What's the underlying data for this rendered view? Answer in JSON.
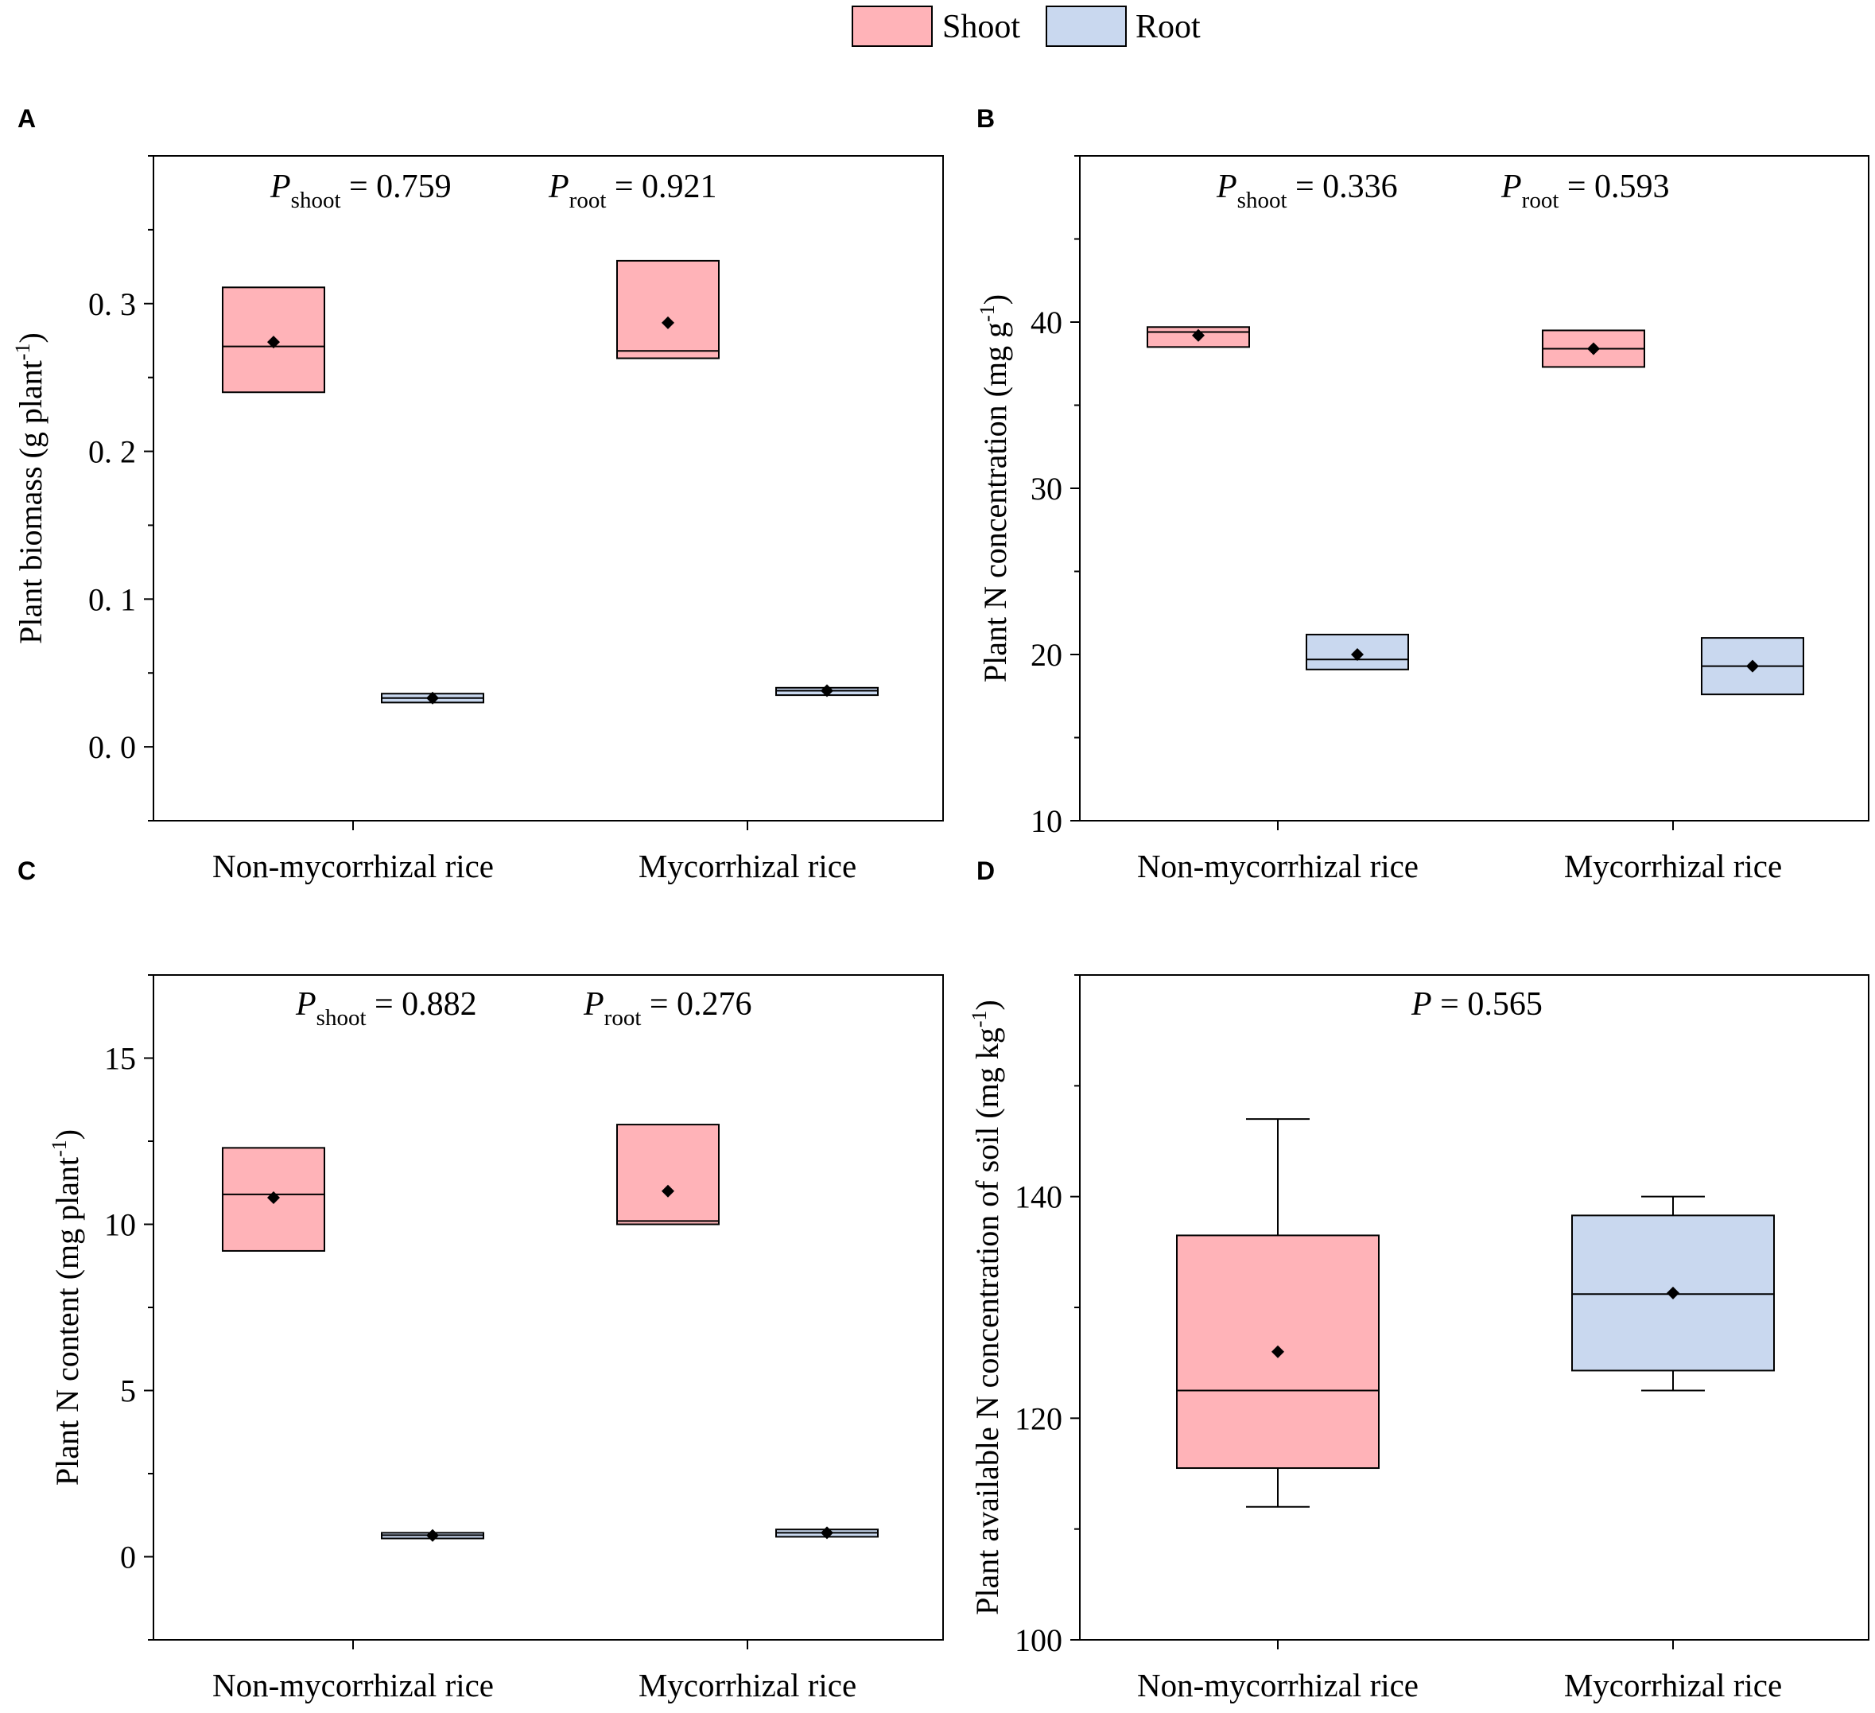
{
  "legend": {
    "items": [
      {
        "label": "Shoot",
        "color": "#ffb3b8"
      },
      {
        "label": "Root",
        "color": "#c9d8ef"
      }
    ],
    "placement": "top-center"
  },
  "colors": {
    "shoot": "#ffb3b8",
    "root": "#c9d8ef",
    "stroke": "#000000",
    "background": "#ffffff"
  },
  "chart_data": [
    {
      "panel": "A",
      "type": "box",
      "ylabel": "Plant biomass (g plant-1)",
      "ylabel_parts": {
        "main": "Plant biomass (g plant",
        "sup": "-1",
        "tail": ")"
      },
      "ylim": [
        -0.05,
        0.4
      ],
      "yticks": [
        0.0,
        0.1,
        0.2,
        0.3
      ],
      "ytick_labels": [
        "0. 0",
        "0. 1",
        "0. 2",
        "0. 3"
      ],
      "categories": [
        "Non-mycorrhizal rice",
        "Mycorrhizal rice"
      ],
      "annotations": [
        {
          "p": "P",
          "sub": "shoot",
          "rest": " = 0.759",
          "text": "Pshoot = 0.759"
        },
        {
          "p": "P",
          "sub": "root",
          "rest": " = 0.921",
          "text": "Proot = 0.921"
        }
      ],
      "boxes": [
        {
          "category": 0,
          "series": "shoot",
          "q1": 0.24,
          "median": 0.271,
          "q3": 0.311,
          "mean": 0.274
        },
        {
          "category": 0,
          "series": "root",
          "q1": 0.03,
          "median": 0.033,
          "q3": 0.036,
          "mean": 0.033
        },
        {
          "category": 1,
          "series": "shoot",
          "q1": 0.263,
          "median": 0.268,
          "q3": 0.329,
          "mean": 0.287
        },
        {
          "category": 1,
          "series": "root",
          "q1": 0.035,
          "median": 0.038,
          "q3": 0.04,
          "mean": 0.038
        }
      ]
    },
    {
      "panel": "B",
      "type": "box",
      "ylabel": "Plant N concentration (mg g-1)",
      "ylabel_parts": {
        "main": "Plant N concentration (mg g",
        "sup": "-1",
        "tail": ")"
      },
      "ylim": [
        10,
        50
      ],
      "yticks": [
        10,
        20,
        30,
        40
      ],
      "ytick_labels": [
        "10",
        "20",
        "30",
        "40"
      ],
      "categories": [
        "Non-mycorrhizal rice",
        "Mycorrhizal rice"
      ],
      "annotations": [
        {
          "p": "P",
          "sub": "shoot",
          "rest": " = 0.336",
          "text": "Pshoot = 0.336"
        },
        {
          "p": "P",
          "sub": "root",
          "rest": " = 0.593",
          "text": "Proot = 0.593"
        }
      ],
      "boxes": [
        {
          "category": 0,
          "series": "shoot",
          "q1": 38.5,
          "median": 39.4,
          "q3": 39.7,
          "mean": 39.2
        },
        {
          "category": 0,
          "series": "root",
          "q1": 19.1,
          "median": 19.7,
          "q3": 21.2,
          "mean": 20.0
        },
        {
          "category": 1,
          "series": "shoot",
          "q1": 37.3,
          "median": 38.4,
          "q3": 39.5,
          "mean": 38.4
        },
        {
          "category": 1,
          "series": "root",
          "q1": 17.6,
          "median": 19.3,
          "q3": 21.0,
          "mean": 19.3
        }
      ]
    },
    {
      "panel": "C",
      "type": "box",
      "ylabel": "Plant N content (mg plant-1)",
      "ylabel_parts": {
        "main": "Plant N content (mg plant",
        "sup": "-1",
        "tail": ")"
      },
      "ylim": [
        -2.5,
        17.5
      ],
      "yticks": [
        0,
        5,
        10,
        15
      ],
      "ytick_labels": [
        "0",
        "5",
        "10",
        "15"
      ],
      "categories": [
        "Non-mycorrhizal rice",
        "Mycorrhizal rice"
      ],
      "annotations": [
        {
          "p": "P",
          "sub": "shoot",
          "rest": " = 0.882",
          "text": "Pshoot = 0.882"
        },
        {
          "p": "P",
          "sub": "root",
          "rest": " = 0.276",
          "text": "Proot = 0.276"
        }
      ],
      "boxes": [
        {
          "category": 0,
          "series": "shoot",
          "q1": 9.2,
          "median": 10.9,
          "q3": 12.3,
          "mean": 10.8
        },
        {
          "category": 0,
          "series": "root",
          "q1": 0.55,
          "median": 0.65,
          "q3": 0.72,
          "mean": 0.64
        },
        {
          "category": 1,
          "series": "shoot",
          "q1": 10.0,
          "median": 10.1,
          "q3": 13.0,
          "mean": 11.0
        },
        {
          "category": 1,
          "series": "root",
          "q1": 0.6,
          "median": 0.72,
          "q3": 0.82,
          "mean": 0.72
        }
      ]
    },
    {
      "panel": "D",
      "type": "box",
      "ylabel": "Plant available N concentration of soil (mg kg-1)",
      "ylabel_parts": {
        "main": "Plant available N concentration of soil  (mg kg",
        "sup": "-1",
        "tail": ")"
      },
      "ylim": [
        100,
        160
      ],
      "yticks": [
        100,
        120,
        140
      ],
      "ytick_labels": [
        "100",
        "120",
        "140"
      ],
      "categories": [
        "Non-mycorrhizal rice",
        "Mycorrhizal rice"
      ],
      "annotations": [
        {
          "p": "P",
          "sub": "",
          "rest": " = 0.565",
          "text": "P = 0.565"
        }
      ],
      "boxes": [
        {
          "category": 0,
          "series": "shoot",
          "whisker_low": 112,
          "q1": 115.5,
          "median": 122.5,
          "q3": 136.5,
          "whisker_high": 147,
          "mean": 126
        },
        {
          "category": 1,
          "series": "root",
          "whisker_low": 122.5,
          "q1": 124.3,
          "median": 131.2,
          "q3": 138.3,
          "whisker_high": 140,
          "mean": 131.3
        }
      ]
    }
  ]
}
